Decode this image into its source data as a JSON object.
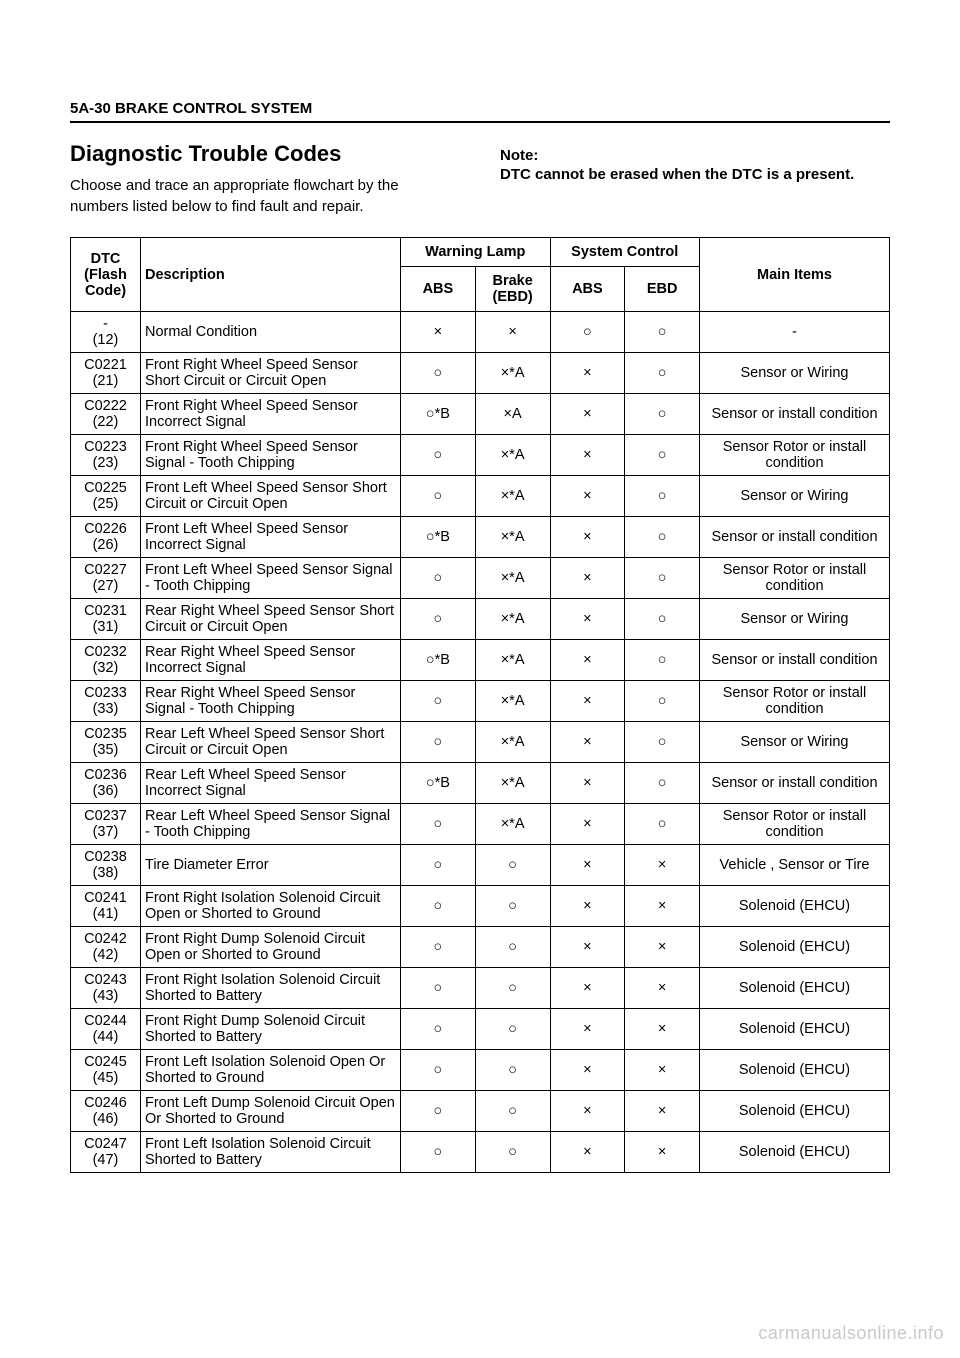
{
  "header": "5A-30   BRAKE CONTROL SYSTEM",
  "title": "Diagnostic Trouble Codes",
  "intro": "Choose and trace an appropriate flowchart by the numbers listed below to find fault and repair.",
  "noteLabel": "Note:",
  "noteText": "DTC cannot be erased when the DTC is a present.",
  "watermark": "carmanualsonline.info",
  "symbols": {
    "circle": "○",
    "cross": "×"
  },
  "tableHead": {
    "dtc": "DTC (Flash Code)",
    "desc": "Description",
    "warn": "Warning Lamp",
    "sys": "System Control",
    "main": "Main Items",
    "abs": "ABS",
    "brake": "Brake (EBD)",
    "ebd": "EBD"
  },
  "rows": [
    {
      "code": "-",
      "flash": "(12)",
      "desc": "Normal Condition",
      "abs1": "×",
      "brake": "×",
      "abs2": "○",
      "ebd": "○",
      "main": "-"
    },
    {
      "code": "C0221",
      "flash": "(21)",
      "desc": "Front Right Wheel Speed Sensor Short Circuit or Circuit Open",
      "abs1": "○",
      "brake": "×*A",
      "abs2": "×",
      "ebd": "○",
      "main": "Sensor or Wiring"
    },
    {
      "code": "C0222",
      "flash": "(22)",
      "desc": "Front Right Wheel Speed Sensor Incorrect Signal",
      "abs1": "○*B",
      "brake": "×A",
      "abs2": "×",
      "ebd": "○",
      "main": "Sensor or install condition"
    },
    {
      "code": "C0223",
      "flash": "(23)",
      "desc": "Front Right Wheel Speed Sensor Signal - Tooth Chipping",
      "abs1": "○",
      "brake": "×*A",
      "abs2": "×",
      "ebd": "○",
      "main": "Sensor Rotor or install condition"
    },
    {
      "code": "C0225",
      "flash": "(25)",
      "desc": "Front Left Wheel Speed Sensor Short Circuit or Circuit Open",
      "abs1": "○",
      "brake": "×*A",
      "abs2": "×",
      "ebd": "○",
      "main": "Sensor or Wiring"
    },
    {
      "code": "C0226",
      "flash": "(26)",
      "desc": "Front Left Wheel Speed Sensor Incorrect Signal",
      "abs1": "○*B",
      "brake": "×*A",
      "abs2": "×",
      "ebd": "○",
      "main": "Sensor or install condition"
    },
    {
      "code": "C0227",
      "flash": "(27)",
      "desc": "Front Left Wheel Speed Sensor Signal - Tooth Chipping",
      "abs1": "○",
      "brake": "×*A",
      "abs2": "×",
      "ebd": "○",
      "main": "Sensor Rotor or install condition"
    },
    {
      "code": "C0231",
      "flash": "(31)",
      "desc": "Rear Right Wheel Speed Sensor Short Circuit or Circuit Open",
      "abs1": "○",
      "brake": "×*A",
      "abs2": "×",
      "ebd": "○",
      "main": "Sensor or Wiring"
    },
    {
      "code": "C0232",
      "flash": "(32)",
      "desc": "Rear Right Wheel Speed Sensor Incorrect Signal",
      "abs1": "○*B",
      "brake": "×*A",
      "abs2": "×",
      "ebd": "○",
      "main": "Sensor or install condition"
    },
    {
      "code": "C0233",
      "flash": "(33)",
      "desc": "Rear Right Wheel Speed Sensor Signal - Tooth Chipping",
      "abs1": "○",
      "brake": "×*A",
      "abs2": "×",
      "ebd": "○",
      "main": "Sensor Rotor or install condition"
    },
    {
      "code": "C0235",
      "flash": "(35)",
      "desc": "Rear Left Wheel Speed Sensor Short Circuit or Circuit Open",
      "abs1": "○",
      "brake": "×*A",
      "abs2": "×",
      "ebd": "○",
      "main": "Sensor or Wiring"
    },
    {
      "code": "C0236",
      "flash": "(36)",
      "desc": "Rear Left Wheel Speed Sensor Incorrect Signal",
      "abs1": "○*B",
      "brake": "×*A",
      "abs2": "×",
      "ebd": "○",
      "main": "Sensor or install condition"
    },
    {
      "code": "C0237",
      "flash": "(37)",
      "desc": "Rear Left Wheel Speed Sensor Signal - Tooth Chipping",
      "abs1": "○",
      "brake": "×*A",
      "abs2": "×",
      "ebd": "○",
      "main": "Sensor Rotor or install condition"
    },
    {
      "code": "C0238",
      "flash": "(38)",
      "desc": "Tire Diameter Error",
      "abs1": "○",
      "brake": "○",
      "abs2": "×",
      "ebd": "×",
      "main": "Vehicle , Sensor or Tire"
    },
    {
      "code": "C0241",
      "flash": "(41)",
      "desc": "Front Right Isolation Solenoid Circuit Open or Shorted to Ground",
      "abs1": "○",
      "brake": "○",
      "abs2": "×",
      "ebd": "×",
      "main": "Solenoid (EHCU)"
    },
    {
      "code": "C0242",
      "flash": "(42)",
      "desc": "Front Right Dump Solenoid Circuit Open or Shorted to Ground",
      "abs1": "○",
      "brake": "○",
      "abs2": "×",
      "ebd": "×",
      "main": "Solenoid (EHCU)"
    },
    {
      "code": "C0243",
      "flash": "(43)",
      "desc": "Front Right Isolation Solenoid Circuit Shorted to Battery",
      "abs1": "○",
      "brake": "○",
      "abs2": "×",
      "ebd": "×",
      "main": "Solenoid (EHCU)"
    },
    {
      "code": "C0244",
      "flash": "(44)",
      "desc": "Front Right Dump Solenoid Circuit Shorted to Battery",
      "abs1": "○",
      "brake": "○",
      "abs2": "×",
      "ebd": "×",
      "main": "Solenoid (EHCU)"
    },
    {
      "code": "C0245",
      "flash": "(45)",
      "desc": "Front Left Isolation Solenoid Open Or Shorted to Ground",
      "abs1": "○",
      "brake": "○",
      "abs2": "×",
      "ebd": "×",
      "main": "Solenoid (EHCU)"
    },
    {
      "code": "C0246",
      "flash": "(46)",
      "desc": "Front Left Dump Solenoid Circuit Open Or Shorted to Ground",
      "abs1": "○",
      "brake": "○",
      "abs2": "×",
      "ebd": "×",
      "main": "Solenoid (EHCU)"
    },
    {
      "code": "C0247",
      "flash": "(47)",
      "desc": "Front Left Isolation Solenoid Circuit Shorted to Battery",
      "abs1": "○",
      "brake": "○",
      "abs2": "×",
      "ebd": "×",
      "main": "Solenoid (EHCU)"
    }
  ]
}
